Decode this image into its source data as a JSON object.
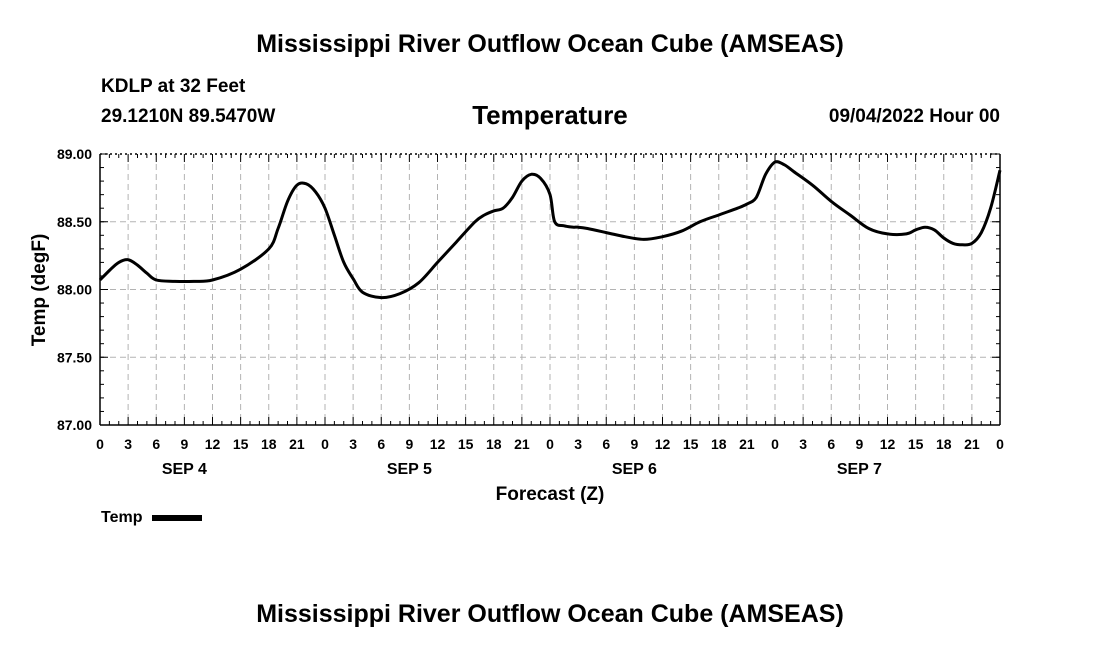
{
  "header": {
    "title": "Mississippi River Outflow Ocean Cube (AMSEAS)",
    "station": "KDLP at 32 Feet",
    "coordinates": "29.1210N  89.5470W",
    "subtitle": "Temperature",
    "datetime": "09/04/2022 Hour 00"
  },
  "footer": {
    "title": "Mississippi River Outflow Ocean Cube (AMSEAS)"
  },
  "legend": {
    "label": "Temp"
  },
  "chart_data": {
    "type": "line",
    "title": "Temperature",
    "xlabel": "Forecast (Z)",
    "ylabel": "Temp (degF)",
    "ylim": [
      87.0,
      89.0
    ],
    "xlim": [
      0,
      96
    ],
    "x_unit": "hours from 09/04/2022 00Z",
    "grid": true,
    "legend_position": "bottom-left",
    "yticks": [
      "87.00",
      "87.50",
      "88.00",
      "88.50",
      "89.00"
    ],
    "xtick_labels": [
      "0",
      "3",
      "6",
      "9",
      "12",
      "15",
      "18",
      "21",
      "0",
      "3",
      "6",
      "9",
      "12",
      "15",
      "18",
      "21",
      "0",
      "3",
      "6",
      "9",
      "12",
      "15",
      "18",
      "21",
      "0",
      "3",
      "6",
      "9",
      "12",
      "15",
      "18",
      "21",
      "0"
    ],
    "day_labels": [
      {
        "label": "SEP 4",
        "hour": 9
      },
      {
        "label": "SEP 5",
        "hour": 33
      },
      {
        "label": "SEP 6",
        "hour": 57
      },
      {
        "label": "SEP 7",
        "hour": 81
      }
    ],
    "series": [
      {
        "name": "Temp",
        "color": "#000000",
        "x": [
          0,
          1,
          2,
          3,
          4,
          5,
          6,
          8,
          10,
          12,
          15,
          18,
          19,
          20,
          21,
          22,
          23,
          24,
          25,
          26,
          27,
          28,
          30,
          32,
          34,
          36,
          38,
          40,
          41,
          42,
          43,
          44,
          45,
          46,
          47,
          48,
          48.5,
          49.5,
          50.5,
          51,
          52,
          54,
          56,
          58,
          60,
          62,
          64,
          66,
          68,
          69,
          70,
          71,
          72,
          73,
          74,
          76,
          78,
          80,
          82,
          84,
          86,
          87,
          88,
          89,
          90,
          91,
          92,
          93,
          94,
          95,
          96
        ],
        "values": [
          88.07,
          88.14,
          88.2,
          88.22,
          88.18,
          88.12,
          88.07,
          88.06,
          88.06,
          88.07,
          88.15,
          88.3,
          88.45,
          88.65,
          88.77,
          88.78,
          88.72,
          88.6,
          88.4,
          88.2,
          88.08,
          87.98,
          87.94,
          87.97,
          88.05,
          88.2,
          88.35,
          88.5,
          88.55,
          88.58,
          88.6,
          88.68,
          88.8,
          88.85,
          88.82,
          88.7,
          88.5,
          88.47,
          88.46,
          88.46,
          88.45,
          88.42,
          88.39,
          88.37,
          88.39,
          88.43,
          88.5,
          88.55,
          88.6,
          88.63,
          88.68,
          88.85,
          88.94,
          88.92,
          88.87,
          88.77,
          88.65,
          88.55,
          88.45,
          88.41,
          88.41,
          88.44,
          88.46,
          88.44,
          88.38,
          88.34,
          88.33,
          88.34,
          88.42,
          88.6,
          88.88
        ]
      }
    ]
  }
}
